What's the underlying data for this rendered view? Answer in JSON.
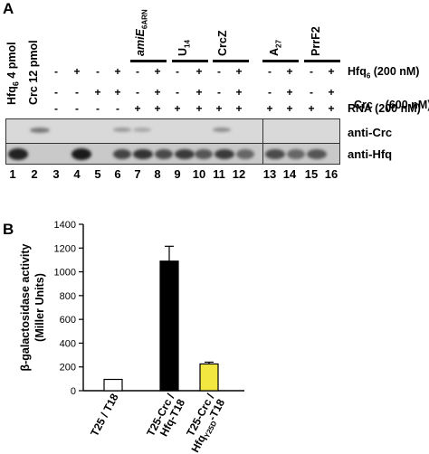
{
  "panel_a": {
    "letter": "A",
    "standards": [
      {
        "text": "Hfq",
        "sub": "6",
        "rest": " 4 pmol"
      },
      {
        "text": "Crc 12 pmol"
      }
    ],
    "rna_groups": [
      {
        "main": "amiE",
        "sub": "6ARN"
      },
      {
        "main": "U",
        "sub": "14"
      },
      {
        "main": "CrcZ",
        "sub": ""
      },
      {
        "main": "A",
        "sub": "27"
      },
      {
        "main": "PrrF2",
        "sub": ""
      }
    ],
    "condition_rows": [
      {
        "label_main": "Hfq",
        "label_sub": "6",
        "label_rest": " (200 nM)",
        "symbols": [
          "",
          "",
          "-",
          "+",
          "-",
          "+",
          "-",
          "+",
          "-",
          "+",
          "-",
          "+",
          "-",
          "+",
          "-",
          "+"
        ]
      },
      {
        "label_main": "Crc",
        "label_sub": "",
        "label_rest": "    (600 nM)",
        "symbols": [
          "",
          "",
          "-",
          "-",
          "+",
          "+",
          "-",
          "+",
          "-",
          "+",
          "-",
          "+",
          "-",
          "+",
          "-",
          "+"
        ]
      },
      {
        "label_main": "RNA (200 nM)",
        "label_sub": "",
        "label_rest": "",
        "symbols": [
          "",
          "",
          "-",
          "-",
          "-",
          "-",
          "+",
          "+",
          "+",
          "+",
          "+",
          "+",
          "+",
          "+",
          "+",
          "+"
        ]
      }
    ],
    "blot_labels": [
      "anti-Crc",
      "anti-Hfq"
    ],
    "lane_numbers": [
      "1",
      "2",
      "3",
      "4",
      "5",
      "6",
      "7",
      "8",
      "9",
      "10",
      "11",
      "12",
      "13",
      "14",
      "15",
      "16"
    ]
  },
  "panel_b": {
    "letter": "B",
    "colors": {
      "bar1": "#ffffff",
      "bar2": "#000000",
      "bar3": "#f2e640",
      "edge": "#000000"
    },
    "chart_data": {
      "type": "bar",
      "ylabel_line1": "β-galactosidase activity",
      "ylabel_line2": "(Miller Units)",
      "ylim": [
        0,
        1400
      ],
      "yticks": [
        0,
        200,
        400,
        600,
        800,
        1000,
        1200,
        1400
      ],
      "categories": [
        {
          "lines": [
            "T25 / T18"
          ]
        },
        {
          "lines": [
            "T25-Crc /",
            "Hfq-T18"
          ]
        },
        {
          "lines": [
            "T25-Crc /",
            "Hfq",
            "-T18"
          ],
          "mutation": "Y25D"
        }
      ],
      "values": [
        95,
        1090,
        225
      ],
      "errors": [
        0,
        125,
        15
      ]
    }
  }
}
